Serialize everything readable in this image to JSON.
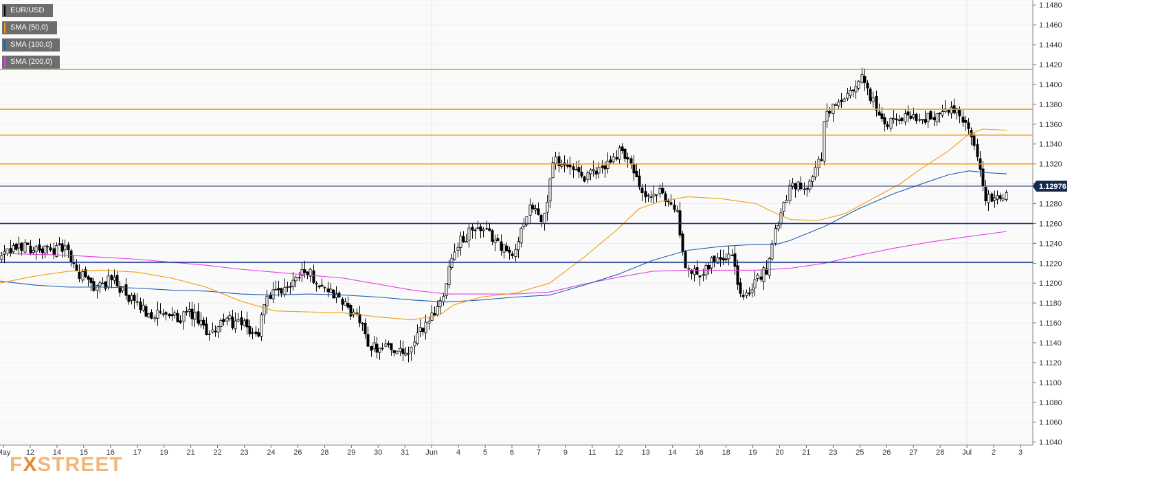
{
  "chart_data": {
    "type": "candlestick",
    "instrument": "EUR/USD",
    "ylim": [
      1.1037,
      1.1485
    ],
    "y_ticks": [
      "1.1480",
      "1.1460",
      "1.1440",
      "1.1420",
      "1.1400",
      "1.1380",
      "1.1360",
      "1.1340",
      "1.1320",
      "1.1300",
      "1.1280",
      "1.1260",
      "1.1240",
      "1.1220",
      "1.1200",
      "1.1180",
      "1.1160",
      "1.1140",
      "1.1120",
      "1.1100",
      "1.1080",
      "1.1060",
      "1.1040"
    ],
    "x_labels": [
      "May",
      "12",
      "14",
      "15",
      "16",
      "17",
      "19",
      "21",
      "22",
      "23",
      "24",
      "26",
      "28",
      "29",
      "30",
      "31",
      "Jun",
      "4",
      "5",
      "6",
      "7",
      "9",
      "11",
      "12",
      "13",
      "14",
      "16",
      "18",
      "19",
      "20",
      "21",
      "23",
      "25",
      "26",
      "27",
      "28",
      "Jul",
      "2",
      "3"
    ],
    "current_price": "1.12976",
    "current_price_value": 1.12976,
    "legend": [
      {
        "label": "EUR/USD",
        "color": "#000000"
      },
      {
        "label": "SMA (50,0)",
        "color": "#f39c12"
      },
      {
        "label": "SMA (100,0)",
        "color": "#1f5fb0"
      },
      {
        "label": "SMA (200,0)",
        "color": "#e040e0"
      }
    ],
    "resistance_levels": [
      1.1415,
      1.1375,
      1.1349,
      1.132
    ],
    "support_levels": [
      1.126,
      1.1221
    ],
    "colors": {
      "orange_level": "#f39c12",
      "blue_level": "#0d2f8a",
      "up_candle": "#ffffff",
      "down_candle": "#000000",
      "price_tag": "#162a4d"
    },
    "sma50": [
      [
        0,
        1.12
      ],
      [
        50,
        1.1207
      ],
      [
        100,
        1.1212
      ],
      [
        150,
        1.1213
      ],
      [
        200,
        1.1211
      ],
      [
        250,
        1.1205
      ],
      [
        300,
        1.1196
      ],
      [
        350,
        1.1182
      ],
      [
        400,
        1.1172
      ],
      [
        450,
        1.1171
      ],
      [
        500,
        1.117
      ],
      [
        550,
        1.1166
      ],
      [
        600,
        1.1163
      ],
      [
        640,
        1.1168
      ],
      [
        660,
        1.1178
      ],
      [
        700,
        1.1186
      ],
      [
        750,
        1.119
      ],
      [
        800,
        1.12
      ],
      [
        850,
        1.1226
      ],
      [
        900,
        1.1255
      ],
      [
        930,
        1.1275
      ],
      [
        960,
        1.1282
      ],
      [
        1000,
        1.1287
      ],
      [
        1050,
        1.1285
      ],
      [
        1100,
        1.128
      ],
      [
        1130,
        1.127
      ],
      [
        1150,
        1.1264
      ],
      [
        1190,
        1.1263
      ],
      [
        1230,
        1.127
      ],
      [
        1270,
        1.1285
      ],
      [
        1310,
        1.13
      ],
      [
        1340,
        1.1315
      ],
      [
        1380,
        1.1333
      ],
      [
        1410,
        1.135
      ],
      [
        1430,
        1.1355
      ],
      [
        1465,
        1.1354
      ]
    ],
    "sma100": [
      [
        0,
        1.1202
      ],
      [
        50,
        1.1198
      ],
      [
        100,
        1.1196
      ],
      [
        150,
        1.1196
      ],
      [
        200,
        1.1195
      ],
      [
        250,
        1.1193
      ],
      [
        300,
        1.1192
      ],
      [
        350,
        1.1189
      ],
      [
        400,
        1.1188
      ],
      [
        450,
        1.1189
      ],
      [
        500,
        1.1188
      ],
      [
        550,
        1.1186
      ],
      [
        600,
        1.1183
      ],
      [
        650,
        1.1181
      ],
      [
        700,
        1.1183
      ],
      [
        750,
        1.1186
      ],
      [
        800,
        1.1188
      ],
      [
        850,
        1.1198
      ],
      [
        900,
        1.1209
      ],
      [
        950,
        1.1223
      ],
      [
        1000,
        1.1233
      ],
      [
        1050,
        1.1237
      ],
      [
        1100,
        1.1239
      ],
      [
        1130,
        1.1239
      ],
      [
        1150,
        1.1243
      ],
      [
        1200,
        1.1257
      ],
      [
        1250,
        1.1275
      ],
      [
        1300,
        1.129
      ],
      [
        1350,
        1.1302
      ],
      [
        1380,
        1.1309
      ],
      [
        1410,
        1.1313
      ],
      [
        1440,
        1.1311
      ],
      [
        1465,
        1.131
      ]
    ],
    "sma200": [
      [
        0,
        1.123
      ],
      [
        50,
        1.1229
      ],
      [
        100,
        1.1228
      ],
      [
        150,
        1.1226
      ],
      [
        200,
        1.1224
      ],
      [
        250,
        1.1221
      ],
      [
        300,
        1.1218
      ],
      [
        350,
        1.1214
      ],
      [
        400,
        1.1211
      ],
      [
        450,
        1.1208
      ],
      [
        500,
        1.1205
      ],
      [
        550,
        1.1199
      ],
      [
        600,
        1.1193
      ],
      [
        650,
        1.1189
      ],
      [
        700,
        1.1189
      ],
      [
        750,
        1.1189
      ],
      [
        800,
        1.1191
      ],
      [
        850,
        1.1199
      ],
      [
        900,
        1.1206
      ],
      [
        950,
        1.1212
      ],
      [
        1000,
        1.1213
      ],
      [
        1050,
        1.1213
      ],
      [
        1100,
        1.1213
      ],
      [
        1150,
        1.1215
      ],
      [
        1200,
        1.122
      ],
      [
        1250,
        1.1228
      ],
      [
        1300,
        1.1235
      ],
      [
        1350,
        1.1241
      ],
      [
        1400,
        1.1246
      ],
      [
        1465,
        1.1252
      ]
    ]
  }
}
